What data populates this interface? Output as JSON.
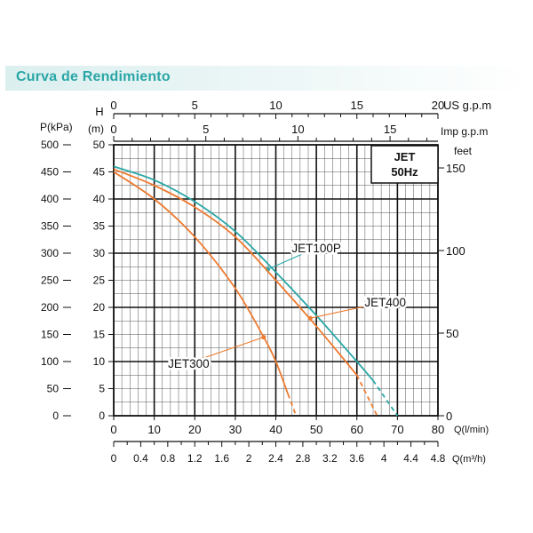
{
  "header": {
    "title": "Curva de Rendimiento"
  },
  "colors": {
    "header_text": "#2aa6a6",
    "jet100p": "#2aa7a7",
    "jet300_jet400": "#ee7b30"
  },
  "chart_data": {
    "type": "line",
    "title": "",
    "model_box": {
      "line1": "JET",
      "line2": "50Hz"
    },
    "axes": {
      "x_bottom": {
        "label": "Q(l/min)",
        "range": [
          0,
          80
        ],
        "ticks": [
          "0",
          "10",
          "20",
          "30",
          "40",
          "50",
          "60",
          "70",
          "80"
        ]
      },
      "x_bottom2": {
        "label": "Q(m³/h)",
        "range": [
          0,
          4.8
        ],
        "ticks": [
          "0",
          "0.4",
          "0.8",
          "1.2",
          "1.6",
          "2",
          "2.4",
          "2.8",
          "3.2",
          "3.6",
          "4",
          "4.4",
          "4.8"
        ]
      },
      "x_top": {
        "label": "US g.p.m",
        "range": [
          0,
          20
        ],
        "ticks": [
          "0",
          "5",
          "10",
          "15",
          "20"
        ]
      },
      "x_top2": {
        "label": "Imp g.p.m",
        "range": [
          0,
          17.6
        ],
        "ticks": [
          "0",
          "5",
          "10",
          "15"
        ]
      },
      "y_left": {
        "label_top": "H",
        "label_unit": "(m)",
        "range": [
          0,
          50
        ],
        "ticks": [
          "0",
          "5",
          "10",
          "15",
          "20",
          "25",
          "30",
          "35",
          "40",
          "45",
          "50"
        ]
      },
      "y_left2": {
        "label": "P(kPa)",
        "range": [
          0,
          500
        ],
        "ticks": [
          "0",
          "50",
          "100",
          "150",
          "200",
          "250",
          "300",
          "350",
          "400",
          "450",
          "500"
        ]
      },
      "y_right": {
        "label": "feet",
        "range": [
          0,
          164
        ],
        "ticks": [
          "0",
          "50",
          "100",
          "150"
        ]
      }
    },
    "grid": true,
    "series": [
      {
        "name": "JET100P",
        "color": "#2aa7a7",
        "points": [
          [
            0,
            46
          ],
          [
            10,
            43.5
          ],
          [
            20,
            39.5
          ],
          [
            30,
            34
          ],
          [
            40,
            26.5
          ],
          [
            50,
            18.5
          ],
          [
            60,
            10
          ],
          [
            64,
            6.5
          ]
        ],
        "dashed_points": [
          [
            64,
            6.5
          ],
          [
            70,
            0
          ]
        ],
        "marker": [
          38,
          27
        ],
        "label_pos": [
          50,
          31
        ]
      },
      {
        "name": "JET400",
        "color": "#ee7b30",
        "points": [
          [
            0,
            45.5
          ],
          [
            10,
            42.5
          ],
          [
            20,
            38.5
          ],
          [
            30,
            33
          ],
          [
            40,
            25
          ],
          [
            50,
            16.5
          ],
          [
            60,
            7.5
          ]
        ],
        "dashed_points": [
          [
            60,
            7.5
          ],
          [
            65,
            0
          ]
        ],
        "marker": [
          48.5,
          18
        ],
        "label_pos": [
          67,
          21
        ]
      },
      {
        "name": "JET300",
        "color": "#ee7b30",
        "points": [
          [
            0,
            45
          ],
          [
            10,
            40
          ],
          [
            20,
            33
          ],
          [
            30,
            23.5
          ],
          [
            37,
            14.5
          ],
          [
            40,
            10
          ],
          [
            43,
            4
          ]
        ],
        "dashed_points": [
          [
            43,
            4
          ],
          [
            45,
            0
          ]
        ],
        "marker": [
          37,
          14.5
        ],
        "label_pos": [
          18.5,
          9.7
        ]
      }
    ]
  }
}
